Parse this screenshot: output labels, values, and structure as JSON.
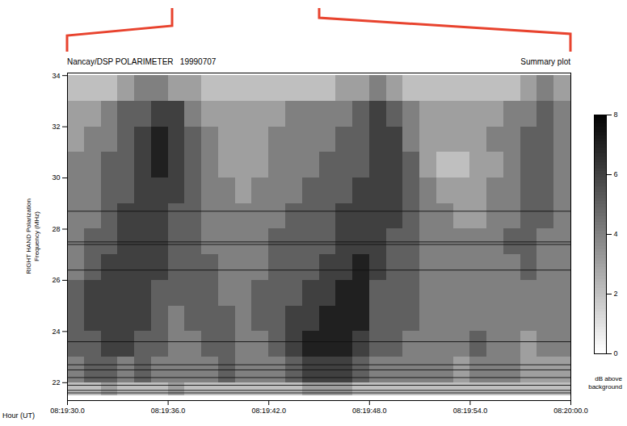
{
  "chart_data": {
    "type": "heatmap",
    "title": "Nancay/DSP POLARIMETER   19990707",
    "subtitle": "Summary plot",
    "xlabel": "Hour (UT)",
    "ylabel": [
      "RIGHT HAND Polarization",
      "Frequency (MHz)"
    ],
    "xlim": [
      29970,
      30000
    ],
    "xticks": [
      {
        "value": 29970,
        "label": "08:19:30.0"
      },
      {
        "value": 29976,
        "label": "08:19:36.0"
      },
      {
        "value": 29982,
        "label": "08:19:42.0"
      },
      {
        "value": 29988,
        "label": "08:19:48.0"
      },
      {
        "value": 29994,
        "label": "08:19:54.0"
      },
      {
        "value": 30000,
        "label": "08:20:00.0"
      }
    ],
    "ylim": [
      21.3,
      34.1
    ],
    "yticks": [
      22,
      24,
      26,
      28,
      30,
      32,
      34
    ],
    "x_edges": [
      29970,
      29971,
      29972,
      29973,
      29974,
      29975,
      29976,
      29977,
      29978,
      29979,
      29980,
      29981,
      29982,
      29983,
      29984,
      29985,
      29986,
      29987,
      29988,
      29989,
      29990,
      29991,
      29992,
      29993,
      29994,
      29995,
      29996,
      29997,
      29998,
      29999,
      30000
    ],
    "y_edges": [
      21.5,
      22,
      23,
      24,
      25,
      26,
      27,
      28,
      29,
      30,
      31,
      32,
      33,
      34
    ],
    "cells": [
      [
        2,
        2,
        3,
        2,
        2,
        2,
        3,
        2,
        2,
        2,
        2,
        2,
        2,
        2,
        3,
        3,
        3,
        2,
        2,
        2,
        2,
        2,
        2,
        2,
        2,
        2,
        2,
        2,
        2,
        2
      ],
      [
        4,
        5,
        5,
        4,
        5,
        4,
        4,
        4,
        4,
        5,
        4,
        4,
        4,
        5,
        6,
        6,
        6,
        5,
        4,
        4,
        4,
        4,
        4,
        3,
        4,
        4,
        4,
        3,
        3,
        3
      ],
      [
        5,
        5,
        6,
        6,
        5,
        5,
        4,
        4,
        5,
        5,
        4,
        4,
        5,
        6,
        7,
        7,
        7,
        6,
        5,
        5,
        4,
        4,
        4,
        4,
        5,
        4,
        4,
        3,
        4,
        4
      ],
      [
        5,
        6,
        6,
        6,
        6,
        5,
        4,
        5,
        5,
        5,
        4,
        5,
        5,
        6,
        6,
        7,
        7,
        7,
        5,
        5,
        5,
        4,
        4,
        4,
        4,
        4,
        4,
        4,
        4,
        4
      ],
      [
        5,
        6,
        6,
        6,
        6,
        5,
        5,
        5,
        5,
        4,
        4,
        5,
        5,
        5,
        6,
        6,
        7,
        7,
        5,
        5,
        5,
        4,
        4,
        4,
        4,
        4,
        4,
        4,
        4,
        4
      ],
      [
        4,
        5,
        6,
        6,
        6,
        6,
        5,
        5,
        5,
        4,
        4,
        4,
        5,
        5,
        5,
        6,
        6,
        7,
        6,
        5,
        5,
        4,
        4,
        4,
        4,
        4,
        4,
        5,
        4,
        4
      ],
      [
        4,
        5,
        5,
        6,
        6,
        6,
        5,
        5,
        4,
        4,
        4,
        4,
        5,
        5,
        5,
        5,
        6,
        6,
        6,
        5,
        5,
        4,
        4,
        4,
        4,
        4,
        5,
        5,
        4,
        4
      ],
      [
        4,
        4,
        5,
        6,
        6,
        6,
        5,
        5,
        4,
        4,
        4,
        4,
        4,
        5,
        5,
        5,
        6,
        6,
        6,
        6,
        5,
        4,
        4,
        3,
        3,
        4,
        4,
        5,
        5,
        4
      ],
      [
        4,
        4,
        5,
        5,
        6,
        6,
        6,
        5,
        4,
        4,
        3,
        4,
        4,
        4,
        5,
        5,
        5,
        6,
        6,
        6,
        5,
        4,
        3,
        3,
        3,
        4,
        4,
        5,
        5,
        4
      ],
      [
        4,
        4,
        5,
        5,
        6,
        7,
        6,
        5,
        4,
        3,
        3,
        3,
        4,
        4,
        4,
        5,
        5,
        5,
        6,
        6,
        5,
        3,
        2,
        2,
        3,
        3,
        4,
        5,
        5,
        4
      ],
      [
        3,
        4,
        4,
        5,
        6,
        7,
        6,
        5,
        4,
        3,
        3,
        3,
        4,
        4,
        4,
        4,
        5,
        5,
        6,
        6,
        4,
        3,
        3,
        3,
        3,
        4,
        4,
        5,
        5,
        4
      ],
      [
        3,
        3,
        4,
        5,
        5,
        6,
        6,
        4,
        3,
        3,
        3,
        3,
        3,
        4,
        4,
        4,
        4,
        5,
        6,
        5,
        4,
        3,
        3,
        3,
        3,
        3,
        4,
        4,
        5,
        4
      ],
      [
        2,
        2,
        2,
        3,
        4,
        4,
        3,
        3,
        2,
        2,
        2,
        2,
        2,
        2,
        2,
        2,
        3,
        3,
        4,
        3,
        2,
        2,
        2,
        2,
        2,
        2,
        2,
        3,
        4,
        3
      ]
    ],
    "interference_lines": [
      21.6,
      21.7,
      21.9,
      22.2,
      22.5,
      22.7,
      23.6,
      26.4,
      27.4,
      27.5,
      28.7
    ],
    "colorbar": {
      "range": [
        0,
        8
      ],
      "ticks": [
        0,
        2,
        4,
        6,
        8
      ],
      "label": [
        "dB above",
        "background"
      ]
    }
  }
}
